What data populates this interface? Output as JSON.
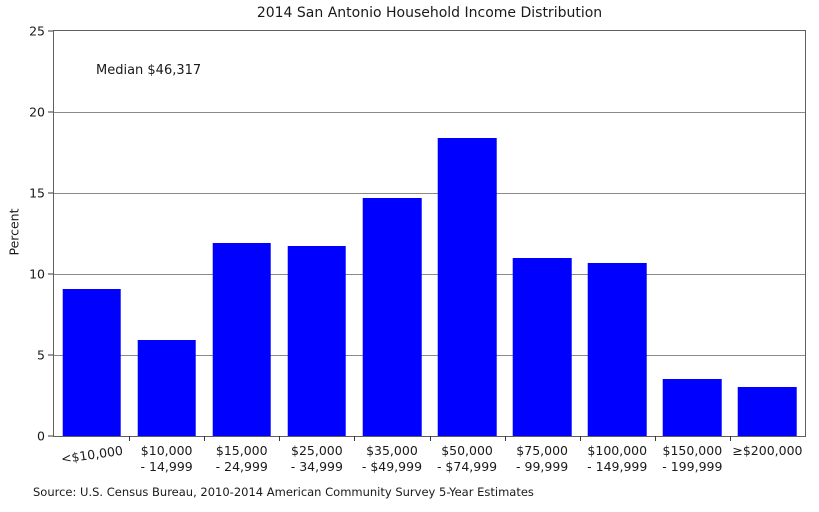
{
  "chart_data": {
    "type": "bar",
    "title": "2014 San Antonio Household Income Distribution",
    "ylabel": "Percent",
    "xlabel": "",
    "annotation": "Median $46,317",
    "source": "Source: U.S. Census Bureau, 2010-2014 American Community Survey 5-Year Estimates",
    "categories": [
      [
        "<$10,000"
      ],
      [
        "$10,000",
        "- 14,999"
      ],
      [
        "$15,000",
        "- 24,999"
      ],
      [
        "$25,000",
        "- 34,999"
      ],
      [
        "$35,000",
        "- $49,999"
      ],
      [
        "$50,000",
        "- $74,999"
      ],
      [
        "$75,000",
        "- 99,999"
      ],
      [
        "$100,000",
        "- 149,999"
      ],
      [
        "$150,000",
        "- 199,999"
      ],
      [
        "≥$200,000"
      ]
    ],
    "values": [
      9.1,
      5.9,
      11.9,
      11.7,
      14.7,
      18.4,
      11.0,
      10.7,
      3.5,
      3.0
    ],
    "ylim": [
      0,
      25
    ],
    "yticks": [
      0,
      5,
      10,
      15,
      20,
      25
    ],
    "grid": "horizontal-only",
    "legend": "none",
    "bar_color": "#0000ff",
    "first_label_rotated": true
  }
}
